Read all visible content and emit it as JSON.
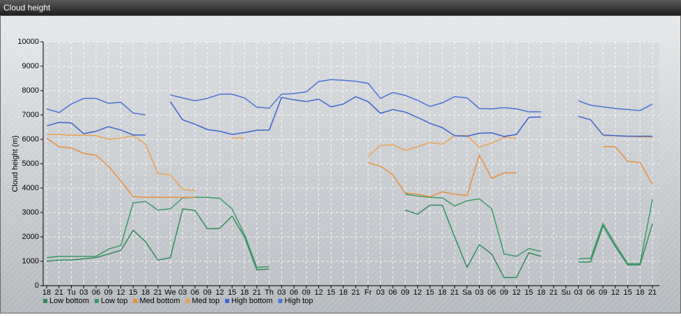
{
  "chart_data": {
    "type": "line",
    "title": "Cloud height",
    "y_label": "Cloud height (m)",
    "categories": [
      "18",
      "21",
      "Tu",
      "03",
      "06",
      "09",
      "12",
      "15",
      "18",
      "21",
      "We",
      "03",
      "06",
      "09",
      "12",
      "15",
      "18",
      "21",
      "Th",
      "03",
      "06",
      "09",
      "12",
      "15",
      "18",
      "21",
      "Fr",
      "03",
      "06",
      "09",
      "12",
      "15",
      "18",
      "21",
      "Sa",
      "03",
      "06",
      "09",
      "12",
      "15",
      "18",
      "21",
      "Su",
      "03",
      "06",
      "09",
      "12",
      "15",
      "18",
      "21"
    ],
    "ylim": [
      0,
      10000
    ],
    "yticks": [
      0,
      1000,
      2000,
      3000,
      4000,
      5000,
      6000,
      7000,
      8000,
      9000,
      10000
    ],
    "grid": true,
    "legend": "bottom-left",
    "series": [
      {
        "name": "Low bottom",
        "color": "#2e8b57",
        "values": [
          1000,
          1050,
          1050,
          1100,
          1150,
          1300,
          1450,
          2270,
          1800,
          1050,
          1150,
          3150,
          3080,
          2330,
          2350,
          2850,
          2000,
          650,
          680,
          null,
          null,
          null,
          null,
          null,
          null,
          null,
          null,
          null,
          null,
          3100,
          2930,
          3300,
          3300,
          2000,
          750,
          1680,
          1300,
          330,
          330,
          1350,
          1200,
          null,
          null,
          970,
          970,
          2450,
          1600,
          850,
          850,
          2550
        ]
      },
      {
        "name": "Low top",
        "color": "#3a9a66",
        "values": [
          1150,
          1200,
          1200,
          1200,
          1200,
          1500,
          1650,
          3400,
          3450,
          3100,
          3150,
          3600,
          3620,
          3620,
          3580,
          3150,
          2100,
          750,
          780,
          null,
          null,
          null,
          null,
          null,
          null,
          null,
          null,
          null,
          null,
          3750,
          3680,
          3620,
          3600,
          3270,
          3480,
          3560,
          3150,
          1300,
          1200,
          1520,
          1400,
          null,
          null,
          1100,
          1120,
          2550,
          1700,
          900,
          900,
          3550
        ]
      },
      {
        "name": "Med bottom",
        "color": "#e8903a",
        "values": [
          6050,
          5700,
          5650,
          5420,
          5350,
          4900,
          4300,
          3650,
          3620,
          3620,
          3620,
          3620,
          3620,
          null,
          null,
          null,
          null,
          null,
          null,
          null,
          null,
          null,
          null,
          null,
          null,
          null,
          5050,
          4900,
          4550,
          3800,
          3750,
          3650,
          3850,
          3750,
          3700,
          5350,
          4400,
          4620,
          4620,
          null,
          null,
          null,
          null,
          null,
          null,
          5700,
          5700,
          5100,
          5050,
          4150
        ]
      },
      {
        "name": "Med top",
        "color": "#eda050",
        "values": [
          6200,
          6200,
          6170,
          6170,
          6150,
          6000,
          6050,
          6150,
          5800,
          4600,
          4550,
          3950,
          3900,
          null,
          null,
          6050,
          6050,
          null,
          null,
          null,
          null,
          null,
          null,
          null,
          null,
          null,
          5300,
          5750,
          5780,
          5550,
          5700,
          5870,
          5800,
          6150,
          6150,
          5680,
          5850,
          6080,
          6050,
          null,
          null,
          null,
          null,
          null,
          null,
          6150,
          6150,
          6120,
          6100,
          6100
        ]
      },
      {
        "name": "High bottom",
        "color": "#3b64d0",
        "values": [
          6550,
          6700,
          6670,
          6230,
          6330,
          6520,
          6380,
          6180,
          6180,
          null,
          7550,
          6800,
          6620,
          6400,
          6330,
          6200,
          6280,
          6370,
          6380,
          7720,
          7620,
          7550,
          7650,
          7330,
          7450,
          7750,
          7550,
          7070,
          7220,
          7120,
          6900,
          6660,
          6480,
          6150,
          6130,
          6250,
          6270,
          6120,
          6200,
          6900,
          6920,
          null,
          null,
          6950,
          6800,
          6180,
          6150,
          6130,
          6130,
          6130
        ]
      },
      {
        "name": "High top",
        "color": "#4a72d8",
        "values": [
          7250,
          7100,
          7450,
          7680,
          7680,
          7480,
          7520,
          7080,
          7000,
          null,
          7820,
          7700,
          7580,
          7680,
          7850,
          7850,
          7700,
          7320,
          7280,
          7850,
          7880,
          7950,
          8370,
          8450,
          8420,
          8380,
          8300,
          7680,
          7920,
          7800,
          7600,
          7350,
          7500,
          7750,
          7700,
          7270,
          7250,
          7300,
          7250,
          7130,
          7130,
          null,
          null,
          7580,
          7400,
          7330,
          7270,
          7220,
          7180,
          7450
        ]
      }
    ]
  }
}
